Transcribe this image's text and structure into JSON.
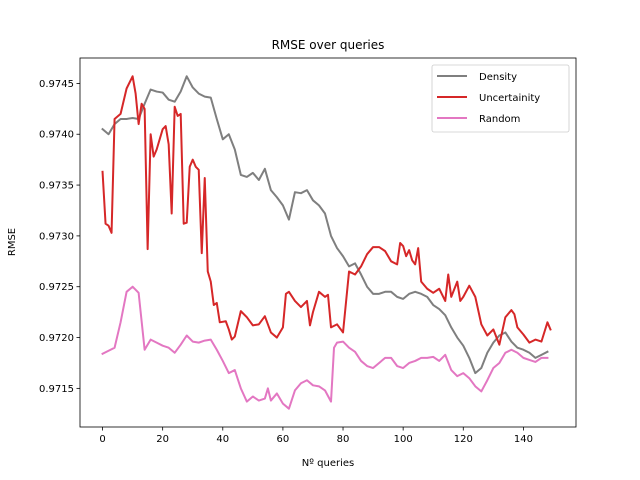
{
  "chart_data": {
    "type": "line",
    "title": "RMSE over queries",
    "xlabel": "Nº queries",
    "ylabel": "RMSE",
    "xlim": [
      -7.5,
      157.5
    ],
    "ylim": [
      0.97112,
      0.97475
    ],
    "xticks": [
      0,
      20,
      40,
      60,
      80,
      100,
      120,
      140
    ],
    "yticks": [
      0.9715,
      0.972,
      0.9725,
      0.973,
      0.9735,
      0.974,
      0.9745
    ],
    "xtick_labels": [
      "0",
      "20",
      "40",
      "60",
      "80",
      "100",
      "120",
      "140"
    ],
    "ytick_labels": [
      "0.9715",
      "0.9720",
      "0.9725",
      "0.9730",
      "0.9735",
      "0.9740",
      "0.9745"
    ],
    "grid": false,
    "legend_position": "top-right",
    "series": [
      {
        "name": "Density",
        "color": "#7f7f7f",
        "points": [
          [
            0,
            0.97405
          ],
          [
            2,
            0.974
          ],
          [
            4,
            0.9741
          ],
          [
            6,
            0.97415
          ],
          [
            8,
            0.97415
          ],
          [
            10,
            0.97416
          ],
          [
            12,
            0.97415
          ],
          [
            14,
            0.9743
          ],
          [
            16,
            0.97444
          ],
          [
            18,
            0.97442
          ],
          [
            20,
            0.97441
          ],
          [
            22,
            0.97434
          ],
          [
            24,
            0.97432
          ],
          [
            26,
            0.97442
          ],
          [
            28,
            0.97457
          ],
          [
            30,
            0.97446
          ],
          [
            32,
            0.9744
          ],
          [
            34,
            0.97437
          ],
          [
            36,
            0.97436
          ],
          [
            38,
            0.97415
          ],
          [
            40,
            0.97395
          ],
          [
            42,
            0.974
          ],
          [
            44,
            0.97385
          ],
          [
            46,
            0.9736
          ],
          [
            48,
            0.97358
          ],
          [
            50,
            0.97362
          ],
          [
            52,
            0.97355
          ],
          [
            54,
            0.97366
          ],
          [
            56,
            0.97345
          ],
          [
            58,
            0.97338
          ],
          [
            60,
            0.9733
          ],
          [
            62,
            0.97316
          ],
          [
            64,
            0.97343
          ],
          [
            66,
            0.97342
          ],
          [
            68,
            0.97345
          ],
          [
            70,
            0.97335
          ],
          [
            72,
            0.9733
          ],
          [
            74,
            0.97322
          ],
          [
            76,
            0.973
          ],
          [
            78,
            0.97288
          ],
          [
            80,
            0.9728
          ],
          [
            82,
            0.9727
          ],
          [
            84,
            0.97273
          ],
          [
            86,
            0.97262
          ],
          [
            88,
            0.9725
          ],
          [
            90,
            0.97243
          ],
          [
            92,
            0.97243
          ],
          [
            94,
            0.97245
          ],
          [
            96,
            0.97245
          ],
          [
            98,
            0.9724
          ],
          [
            100,
            0.97238
          ],
          [
            102,
            0.97243
          ],
          [
            104,
            0.97245
          ],
          [
            106,
            0.97243
          ],
          [
            108,
            0.9724
          ],
          [
            110,
            0.97232
          ],
          [
            112,
            0.97228
          ],
          [
            114,
            0.97222
          ],
          [
            116,
            0.9721
          ],
          [
            118,
            0.972
          ],
          [
            120,
            0.97192
          ],
          [
            122,
            0.9718
          ],
          [
            124,
            0.97165
          ],
          [
            126,
            0.9717
          ],
          [
            128,
            0.97185
          ],
          [
            130,
            0.97195
          ],
          [
            132,
            0.97202
          ],
          [
            134,
            0.97205
          ],
          [
            136,
            0.97196
          ],
          [
            138,
            0.9719
          ],
          [
            140,
            0.97188
          ],
          [
            142,
            0.97185
          ],
          [
            144,
            0.9718
          ],
          [
            146,
            0.97183
          ],
          [
            148,
            0.97186
          ]
        ]
      },
      {
        "name": "Uncertainity",
        "color": "#d62728",
        "points": [
          [
            0,
            0.97363
          ],
          [
            1,
            0.97312
          ],
          [
            2,
            0.9731
          ],
          [
            3,
            0.97303
          ],
          [
            4,
            0.97415
          ],
          [
            6,
            0.9742
          ],
          [
            8,
            0.97445
          ],
          [
            10,
            0.97457
          ],
          [
            11,
            0.9744
          ],
          [
            12,
            0.9741
          ],
          [
            13,
            0.9743
          ],
          [
            14,
            0.97425
          ],
          [
            15,
            0.97287
          ],
          [
            16,
            0.974
          ],
          [
            17,
            0.97378
          ],
          [
            18,
            0.97385
          ],
          [
            20,
            0.97405
          ],
          [
            21,
            0.97408
          ],
          [
            22,
            0.9739
          ],
          [
            23,
            0.97322
          ],
          [
            24,
            0.97427
          ],
          [
            25,
            0.97418
          ],
          [
            26,
            0.9742
          ],
          [
            27,
            0.97312
          ],
          [
            28,
            0.97313
          ],
          [
            29,
            0.97368
          ],
          [
            30,
            0.97375
          ],
          [
            31,
            0.97368
          ],
          [
            32,
            0.97365
          ],
          [
            33,
            0.97283
          ],
          [
            34,
            0.97357
          ],
          [
            35,
            0.97265
          ],
          [
            36,
            0.97255
          ],
          [
            37,
            0.97232
          ],
          [
            38,
            0.97234
          ],
          [
            39,
            0.97215
          ],
          [
            41,
            0.97216
          ],
          [
            42,
            0.97208
          ],
          [
            43,
            0.97198
          ],
          [
            44,
            0.97201
          ],
          [
            46,
            0.97226
          ],
          [
            48,
            0.9722
          ],
          [
            50,
            0.97212
          ],
          [
            52,
            0.97213
          ],
          [
            54,
            0.97221
          ],
          [
            56,
            0.97205
          ],
          [
            58,
            0.972
          ],
          [
            60,
            0.9721
          ],
          [
            61,
            0.97243
          ],
          [
            62,
            0.97245
          ],
          [
            64,
            0.97236
          ],
          [
            66,
            0.9723
          ],
          [
            68,
            0.97236
          ],
          [
            69,
            0.97212
          ],
          [
            70,
            0.97225
          ],
          [
            72,
            0.97245
          ],
          [
            74,
            0.9724
          ],
          [
            75,
            0.97242
          ],
          [
            76,
            0.9721
          ],
          [
            78,
            0.97213
          ],
          [
            80,
            0.97205
          ],
          [
            82,
            0.97265
          ],
          [
            84,
            0.97262
          ],
          [
            86,
            0.9727
          ],
          [
            88,
            0.97282
          ],
          [
            90,
            0.97289
          ],
          [
            92,
            0.97289
          ],
          [
            94,
            0.97285
          ],
          [
            96,
            0.97275
          ],
          [
            98,
            0.97272
          ],
          [
            99,
            0.97293
          ],
          [
            100,
            0.9729
          ],
          [
            101,
            0.9728
          ],
          [
            102,
            0.97286
          ],
          [
            103,
            0.97276
          ],
          [
            104,
            0.97272
          ],
          [
            105,
            0.97288
          ],
          [
            106,
            0.97255
          ],
          [
            108,
            0.97248
          ],
          [
            110,
            0.97244
          ],
          [
            112,
            0.97248
          ],
          [
            114,
            0.97236
          ],
          [
            115,
            0.97262
          ],
          [
            116,
            0.9724
          ],
          [
            118,
            0.97255
          ],
          [
            119,
            0.97236
          ],
          [
            120,
            0.9724
          ],
          [
            122,
            0.97251
          ],
          [
            124,
            0.9724
          ],
          [
            126,
            0.97213
          ],
          [
            128,
            0.97202
          ],
          [
            130,
            0.97208
          ],
          [
            132,
            0.97193
          ],
          [
            134,
            0.9722
          ],
          [
            136,
            0.97227
          ],
          [
            137,
            0.97223
          ],
          [
            138,
            0.9721
          ],
          [
            140,
            0.97203
          ],
          [
            142,
            0.97195
          ],
          [
            144,
            0.97198
          ],
          [
            146,
            0.97196
          ],
          [
            148,
            0.97215
          ],
          [
            149,
            0.97208
          ]
        ]
      },
      {
        "name": "Random",
        "color": "#e377c2",
        "points": [
          [
            0,
            0.97184
          ],
          [
            2,
            0.97187
          ],
          [
            4,
            0.9719
          ],
          [
            6,
            0.97215
          ],
          [
            8,
            0.97245
          ],
          [
            10,
            0.9725
          ],
          [
            12,
            0.97244
          ],
          [
            14,
            0.97188
          ],
          [
            16,
            0.97198
          ],
          [
            18,
            0.97195
          ],
          [
            20,
            0.97192
          ],
          [
            22,
            0.9719
          ],
          [
            24,
            0.97185
          ],
          [
            26,
            0.97193
          ],
          [
            28,
            0.97202
          ],
          [
            30,
            0.97196
          ],
          [
            32,
            0.97195
          ],
          [
            34,
            0.97197
          ],
          [
            36,
            0.97198
          ],
          [
            38,
            0.97188
          ],
          [
            40,
            0.97177
          ],
          [
            42,
            0.97165
          ],
          [
            44,
            0.97168
          ],
          [
            46,
            0.9715
          ],
          [
            48,
            0.97137
          ],
          [
            50,
            0.97142
          ],
          [
            52,
            0.97138
          ],
          [
            54,
            0.9714
          ],
          [
            55,
            0.9715
          ],
          [
            56,
            0.97138
          ],
          [
            58,
            0.97145
          ],
          [
            60,
            0.97135
          ],
          [
            62,
            0.9713
          ],
          [
            64,
            0.97148
          ],
          [
            66,
            0.97155
          ],
          [
            68,
            0.97158
          ],
          [
            70,
            0.97153
          ],
          [
            72,
            0.97152
          ],
          [
            74,
            0.97148
          ],
          [
            76,
            0.97137
          ],
          [
            77,
            0.9719
          ],
          [
            78,
            0.97195
          ],
          [
            80,
            0.97196
          ],
          [
            82,
            0.9719
          ],
          [
            84,
            0.97186
          ],
          [
            86,
            0.97177
          ],
          [
            88,
            0.97172
          ],
          [
            90,
            0.9717
          ],
          [
            92,
            0.97175
          ],
          [
            94,
            0.9718
          ],
          [
            96,
            0.9718
          ],
          [
            98,
            0.97172
          ],
          [
            100,
            0.9717
          ],
          [
            102,
            0.97175
          ],
          [
            104,
            0.97177
          ],
          [
            106,
            0.9718
          ],
          [
            108,
            0.9718
          ],
          [
            110,
            0.97181
          ],
          [
            112,
            0.97177
          ],
          [
            114,
            0.97183
          ],
          [
            116,
            0.97168
          ],
          [
            118,
            0.97162
          ],
          [
            120,
            0.97165
          ],
          [
            122,
            0.9716
          ],
          [
            124,
            0.97152
          ],
          [
            126,
            0.97147
          ],
          [
            128,
            0.97158
          ],
          [
            130,
            0.9717
          ],
          [
            132,
            0.97175
          ],
          [
            134,
            0.97185
          ],
          [
            136,
            0.97188
          ],
          [
            138,
            0.97185
          ],
          [
            140,
            0.9718
          ],
          [
            142,
            0.97178
          ],
          [
            144,
            0.97176
          ],
          [
            146,
            0.9718
          ],
          [
            148,
            0.9718
          ]
        ]
      }
    ]
  }
}
